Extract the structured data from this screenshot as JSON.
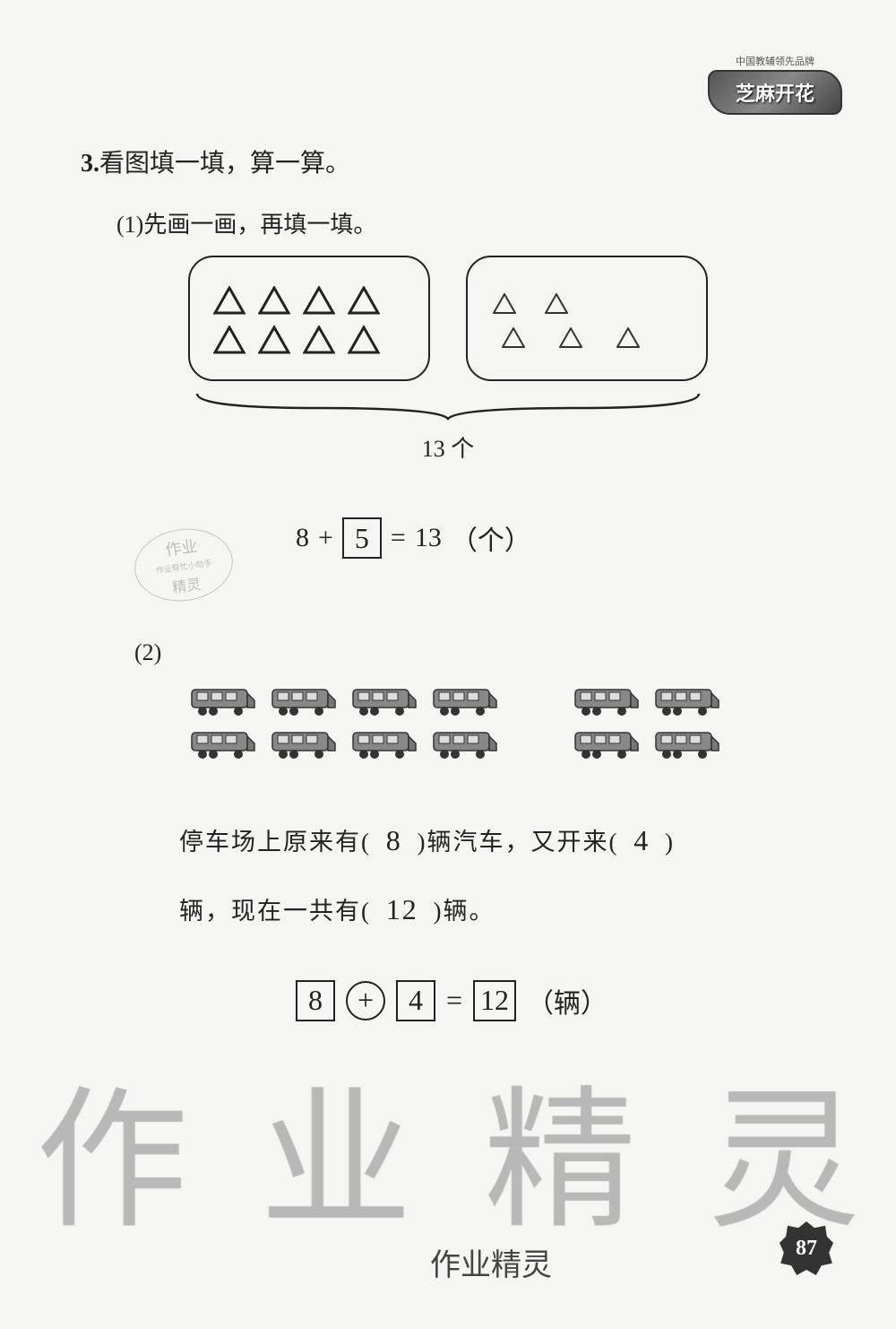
{
  "logo": {
    "tagline": "中国教辅领先品牌",
    "brand": "芝麻开花"
  },
  "question": {
    "number": "3.",
    "title": "看图填一填，算一算。"
  },
  "part1": {
    "label": "(1)",
    "instruction": "先画一画，再填一填。",
    "left_triangles_row1": 4,
    "left_triangles_row2": 4,
    "right_triangles_row1": 2,
    "right_triangles_row2": 3,
    "brace_label": "13 个",
    "equation": {
      "a": "8",
      "op": "+",
      "ans": "5",
      "eq": "=",
      "b": "13",
      "unit": "（个）"
    }
  },
  "stamp": {
    "line1": "作业",
    "line2": "作业帮忙小助手",
    "line3": "精灵"
  },
  "part2": {
    "label": "(2)",
    "left_vans_row1": 4,
    "left_vans_row2": 4,
    "right_vans_row1": 2,
    "right_vans_row2": 2,
    "text_before1": "停车场上原来有(",
    "ans1": "8",
    "text_mid1": ")辆汽车，又开来(",
    "ans2": "4",
    "text_after1": ")",
    "text_line2a": "辆，现在一共有(",
    "ans3": "12",
    "text_line2b": ")辆。",
    "equation": {
      "a": "8",
      "op": "+",
      "b": "4",
      "eq": "=",
      "r": "12",
      "unit": "（辆）"
    }
  },
  "watermark": {
    "c1": "作",
    "c2": "业",
    "c3": "精",
    "c4": "灵"
  },
  "footer_hand": "作业精灵",
  "page_number": "87",
  "colors": {
    "bg": "#f5f5f3",
    "ink": "#222222",
    "hand": "#333333",
    "wm": "rgba(180,180,180,0.35)"
  }
}
